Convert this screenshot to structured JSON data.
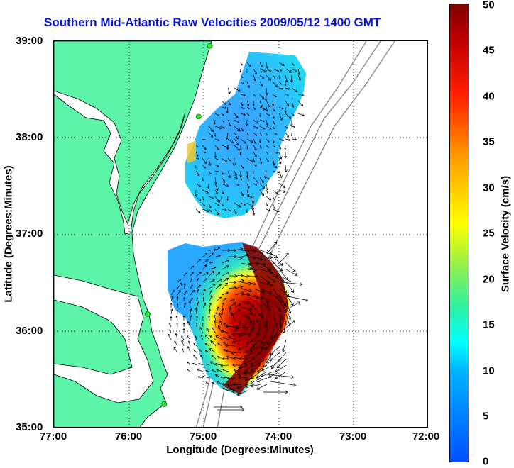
{
  "title": "Southern Mid-Atlantic Raw Velocities 2009/05/12 1400 GMT",
  "axes": {
    "x_title": "Longitude (Degrees:Minutes)",
    "y_title": "Latitude (Degrees:Minutes)",
    "x_ticks": [
      "77:00",
      "76:00",
      "75:00",
      "74:00",
      "73:00",
      "72:00"
    ],
    "y_ticks": [
      "39:00",
      "38:00",
      "37:00",
      "36:00",
      "35:00"
    ]
  },
  "colorbar": {
    "title": "Surface Velocity (cm/s)",
    "ticks": [
      "50",
      "45",
      "40",
      "35",
      "30",
      "25",
      "20",
      "15",
      "10",
      "5",
      "0"
    ],
    "range": [
      0,
      50
    ],
    "colors": [
      "#0050ff",
      "#00ffff",
      "#2ef0a0",
      "#ffff00",
      "#ffa000",
      "#ff2000",
      "#800000"
    ]
  },
  "map": {
    "lon_range": [
      -77.0,
      -72.0
    ],
    "lat_range": [
      35.0,
      39.0
    ],
    "land_color": "#5cf5a8",
    "station_color": "#33e033",
    "stations": [
      {
        "lon": -74.92,
        "lat": 38.95
      },
      {
        "lon": -75.07,
        "lat": 38.22
      },
      {
        "lon": -75.75,
        "lat": 36.18
      },
      {
        "lon": -75.53,
        "lat": 35.25
      }
    ]
  }
}
